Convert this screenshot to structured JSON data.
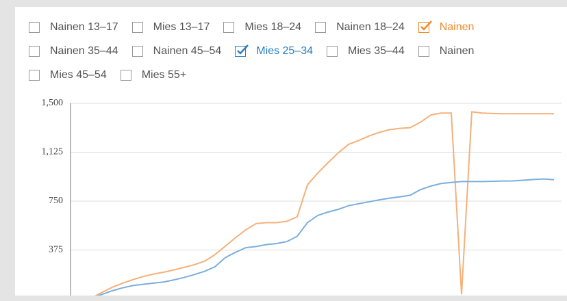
{
  "filters": [
    {
      "label": "Nainen 13–17",
      "checked": false
    },
    {
      "label": "Mies 13–17",
      "checked": false
    },
    {
      "label": "Mies 18–24",
      "checked": false
    },
    {
      "label": "Nainen 18–24",
      "checked": false
    },
    {
      "label": "Nainen",
      "checked": true,
      "color": "#f08a2c"
    },
    {
      "label": "Nainen 35–44",
      "checked": false
    },
    {
      "label": "Nainen 45–54",
      "checked": false
    },
    {
      "label": "Mies 25–34",
      "checked": true,
      "color": "#2a7fc1"
    },
    {
      "label": "Mies 35–44",
      "checked": false
    },
    {
      "label": "Nainen",
      "checked": false
    },
    {
      "label": "Mies 45–54",
      "checked": false
    },
    {
      "label": "Mies 55+",
      "checked": false
    }
  ],
  "chart_data": {
    "type": "line",
    "categories": [
      null,
      null,
      null,
      null,
      null,
      null,
      null,
      null,
      null,
      null,
      null,
      null,
      null,
      null,
      null,
      null,
      null,
      null,
      null,
      null,
      null,
      null,
      null,
      null,
      null,
      null,
      null,
      null,
      null,
      null,
      null,
      null,
      null,
      null,
      null,
      null,
      null,
      null,
      null,
      null,
      null,
      null,
      null,
      null,
      null,
      null
    ],
    "series": [
      {
        "color": "#f4b07a",
        "values": [
          10,
          50,
          90,
          120,
          148,
          172,
          190,
          205,
          223,
          242,
          263,
          290,
          340,
          405,
          470,
          530,
          578,
          585,
          585,
          595,
          630,
          875,
          965,
          1045,
          1120,
          1185,
          1215,
          1250,
          1277,
          1298,
          1308,
          1313,
          1355,
          1410,
          1425,
          1425,
          35,
          1435,
          1425,
          1422,
          1420,
          1420,
          1420,
          1420,
          1420,
          1420
        ]
      },
      {
        "color": "#7aaedb",
        "values": [
          10,
          35,
          63,
          85,
          103,
          112,
          121,
          130,
          146,
          165,
          187,
          212,
          247,
          317,
          358,
          393,
          402,
          417,
          425,
          440,
          480,
          585,
          640,
          666,
          687,
          715,
          730,
          745,
          760,
          773,
          783,
          795,
          838,
          865,
          885,
          893,
          900,
          900,
          900,
          902,
          904,
          905,
          910,
          916,
          920,
          914
        ]
      }
    ],
    "ylim": [
      0,
      1500
    ],
    "yticks": [
      {
        "value": 1500,
        "label": "1,500"
      },
      {
        "value": 1125,
        "label": "1,125"
      },
      750,
      375
    ],
    "grid": true
  }
}
